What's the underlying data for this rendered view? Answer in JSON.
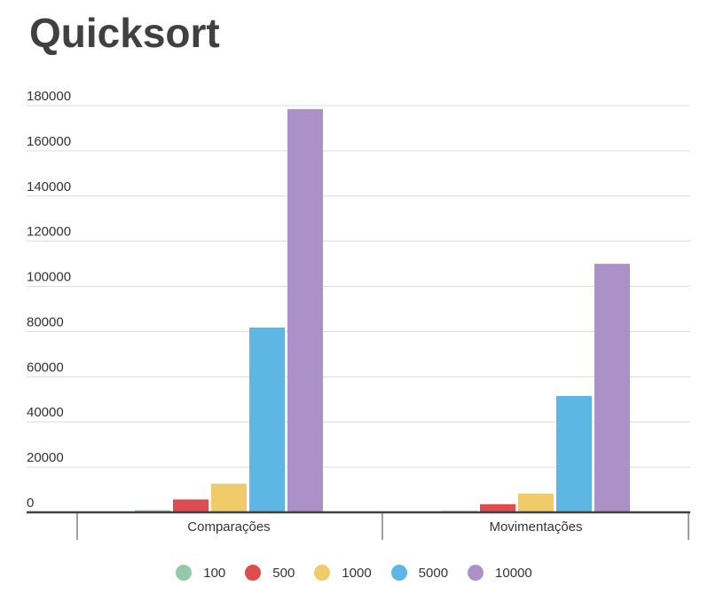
{
  "chart_data": {
    "type": "bar",
    "title": "Quicksort",
    "categories": [
      "Comparações",
      "Movimentações"
    ],
    "series": [
      {
        "name": "100",
        "color": "#93c9a9",
        "values": [
          900,
          600
        ]
      },
      {
        "name": "500",
        "color": "#dd4d50",
        "values": [
          5700,
          3600
        ]
      },
      {
        "name": "1000",
        "color": "#f0cb69",
        "values": [
          12700,
          8300
        ]
      },
      {
        "name": "5000",
        "color": "#5db6e4",
        "values": [
          81800,
          51500
        ]
      },
      {
        "name": "10000",
        "color": "#ab91c8",
        "values": [
          178500,
          110000
        ]
      }
    ],
    "yticks": [
      "0",
      "20000",
      "40000",
      "60000",
      "80000",
      "100000",
      "120000",
      "140000",
      "160000",
      "180000"
    ],
    "ylim": [
      0,
      180000
    ],
    "grid": true,
    "legend_position": "bottom"
  }
}
